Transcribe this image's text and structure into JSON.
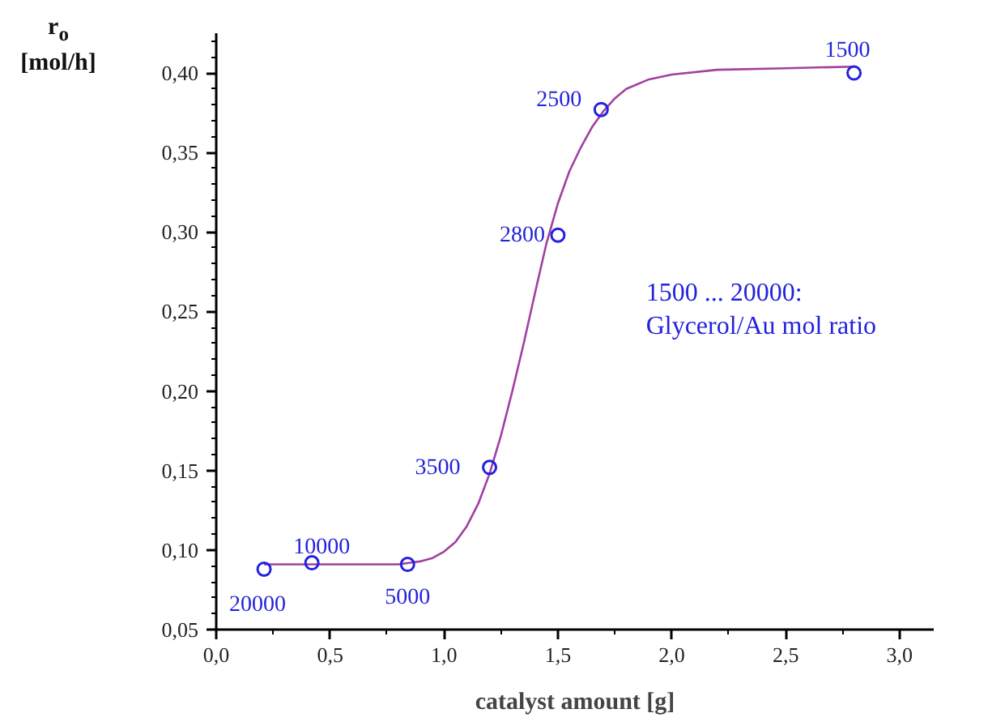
{
  "chart_data": {
    "type": "scatter",
    "xlabel": "catalyst amount [g]",
    "ylabel": "r$_{o}$ [mol/h]",
    "xlim": [
      0,
      3.15
    ],
    "ylim": [
      0.05,
      0.425
    ],
    "xticks": [
      {
        "value": 0,
        "label": "0,0"
      },
      {
        "value": 0.5,
        "label": "0,5"
      },
      {
        "value": 1,
        "label": "1,0"
      },
      {
        "value": 1.5,
        "label": "1,5"
      },
      {
        "value": 2,
        "label": "2,0"
      },
      {
        "value": 2.5,
        "label": "2,5"
      },
      {
        "value": 3,
        "label": "3,0"
      }
    ],
    "yticks": [
      {
        "value": 0.05,
        "label": "0,05"
      },
      {
        "value": 0.1,
        "label": "0,10"
      },
      {
        "value": 0.15,
        "label": "0,15"
      },
      {
        "value": 0.2,
        "label": "0,20"
      },
      {
        "value": 0.25,
        "label": "0,25"
      },
      {
        "value": 0.3,
        "label": "0,30"
      },
      {
        "value": 0.35,
        "label": "0,35"
      },
      {
        "value": 0.4,
        "label": "0,40"
      }
    ],
    "grid": false,
    "series": [
      {
        "marker": "circle",
        "color": "#2222dd",
        "x": [
          0.21,
          0.42,
          0.84,
          1.2,
          1.5,
          1.69,
          2.8
        ],
        "values": [
          0.088,
          0.092,
          0.091,
          0.152,
          0.298,
          0.377,
          0.4
        ]
      },
      {
        "type": "line",
        "marker": "none",
        "color": "#a040a0",
        "line_style": "solid",
        "x": [
          0.21,
          0.5,
          0.8,
          0.9,
          0.95,
          1.0,
          1.05,
          1.1,
          1.15,
          1.2,
          1.25,
          1.3,
          1.35,
          1.4,
          1.45,
          1.5,
          1.55,
          1.6,
          1.65,
          1.7,
          1.75,
          1.8,
          1.9,
          2.0,
          2.2,
          2.5,
          2.8
        ],
        "values": [
          0.091,
          0.091,
          0.091,
          0.093,
          0.095,
          0.099,
          0.105,
          0.115,
          0.129,
          0.148,
          0.172,
          0.2,
          0.23,
          0.262,
          0.293,
          0.318,
          0.338,
          0.353,
          0.366,
          0.376,
          0.384,
          0.39,
          0.396,
          0.399,
          0.402,
          0.403,
          0.404
        ]
      }
    ],
    "annotations": [
      {
        "text": "20000",
        "x": 0.21,
        "y": 0.088
      },
      {
        "text": "10000",
        "x": 0.42,
        "y": 0.092
      },
      {
        "text": "5000",
        "x": 0.84,
        "y": 0.091
      },
      {
        "text": "3500",
        "x": 1.2,
        "y": 0.152
      },
      {
        "text": "2800",
        "x": 1.5,
        "y": 0.298
      },
      {
        "text": "2500",
        "x": 1.69,
        "y": 0.377
      },
      {
        "text": "1500",
        "x": 2.8,
        "y": 0.4
      },
      "1500 ... 20000:\nGlycerol/Au mol ratio"
    ]
  }
}
